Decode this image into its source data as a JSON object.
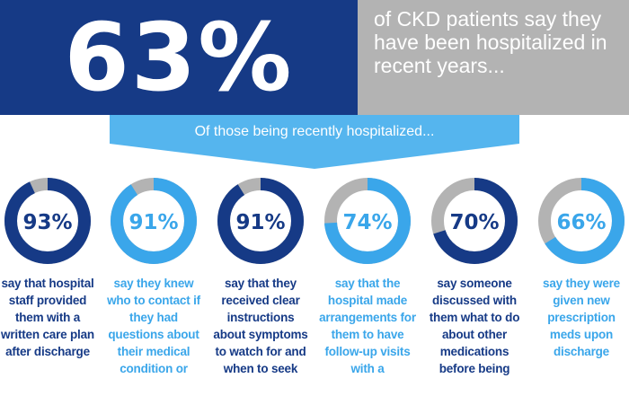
{
  "hero": {
    "stat": "63%",
    "text": "of CKD patients say they have been hospitalized in recent years..."
  },
  "banner": {
    "text": "Of those being recently hospitalized..."
  },
  "colors": {
    "dark_blue": "#163a86",
    "light_blue": "#3aa6ea",
    "banner_blue": "#55b5ee",
    "track_gray": "#b3b3b3",
    "white": "#ffffff"
  },
  "chart_data": {
    "type": "donut",
    "unit": "%",
    "max": 100,
    "items": [
      {
        "value": 93,
        "label": "93%",
        "color": "dark",
        "description": "say that hospital staff provided them with a written care plan after discharge"
      },
      {
        "value": 91,
        "label": "91%",
        "color": "light",
        "description": "say they knew who to contact if they had questions about their medical condition or"
      },
      {
        "value": 91,
        "label": "91%",
        "color": "dark",
        "description": "say that they received clear instructions about symptoms to watch for and when to seek"
      },
      {
        "value": 74,
        "label": "74%",
        "color": "light",
        "description": "say that the hospital made arrangements for them to have follow-up visits with a"
      },
      {
        "value": 70,
        "label": "70%",
        "color": "dark",
        "description": "say someone discussed with them what to do about other medications before being"
      },
      {
        "value": 66,
        "label": "66%",
        "color": "light",
        "description": "say they were given new prescription meds upon discharge"
      }
    ]
  }
}
